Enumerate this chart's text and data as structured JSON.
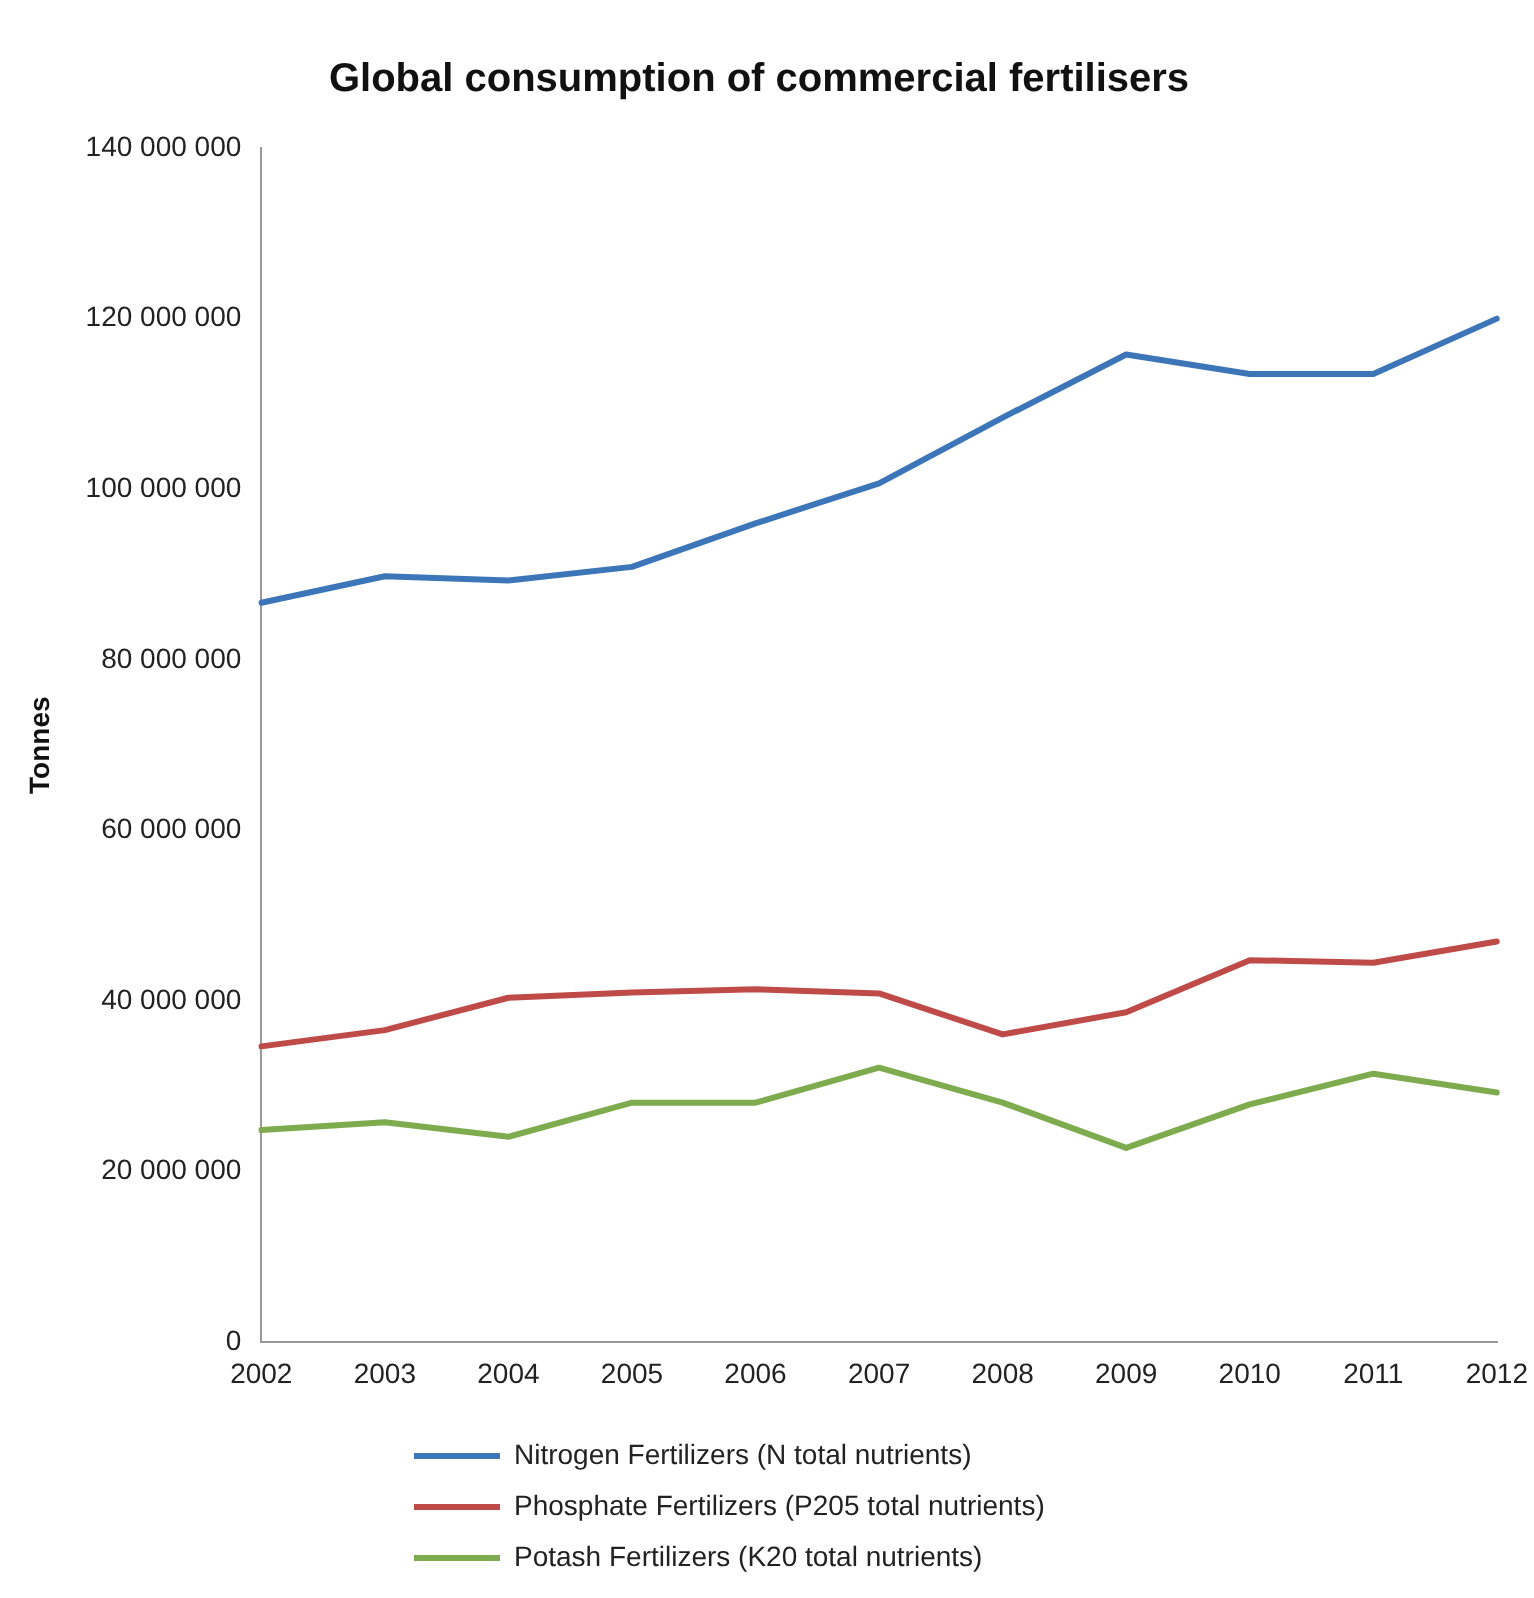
{
  "chart_data": {
    "type": "line",
    "title": "Global consumption of commercial fertilisers",
    "ylabel": "Tonnes",
    "categories": [
      "2002",
      "2003",
      "2004",
      "2005",
      "2006",
      "2007",
      "2008",
      "2009",
      "2010",
      "2011",
      "2012"
    ],
    "series": [
      {
        "name": "Nitrogen Fertilizers (N total nutrients)",
        "color": "#3d76b8",
        "values": [
          86700000,
          89800000,
          89300000,
          90900000,
          96000000,
          100700000,
          108400000,
          115800000,
          113500000,
          113500000,
          120000000
        ]
      },
      {
        "name": "Phosphate Fertilizers (P205 total nutrients)",
        "color": "#be4b48",
        "values": [
          34700000,
          36600000,
          40400000,
          41000000,
          41400000,
          40900000,
          36100000,
          38700000,
          44800000,
          44500000,
          47000000
        ]
      },
      {
        "name": "Potash Fertilizers (K20 total nutrients)",
        "color": "#7fab4f",
        "values": [
          24900000,
          25800000,
          24100000,
          28100000,
          28100000,
          32200000,
          28100000,
          22800000,
          27900000,
          31500000,
          29300000
        ]
      }
    ],
    "ylim": [
      0,
      140000000
    ],
    "yticks": [
      0,
      {
        "value": 20000000,
        "label": "20 000 000"
      },
      {
        "value": 40000000,
        "label": "40 000 000"
      },
      {
        "value": 60000000,
        "label": "60 000 000"
      },
      {
        "value": 80000000,
        "label": "80 000 000"
      },
      {
        "value": 100000000,
        "label": "100 000 000"
      },
      {
        "value": 120000000,
        "label": "120 000 000"
      },
      {
        "value": 140000000,
        "label": "140 000 000"
      }
    ],
    "grid": false,
    "legend": "bottom",
    "marker": "none",
    "line_style": "solid"
  }
}
